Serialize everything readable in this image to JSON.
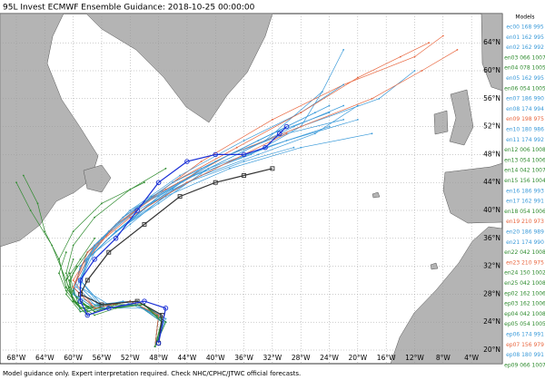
{
  "title": "95L Invest ECMWF Ensemble Guidance: 2018-10-25 00:00:00",
  "footer": "Model guidance only. Expert interpretation required. Check NHC/CPHC/JTWC official forecasts.",
  "legend_title": "Models",
  "lat_ticks": [
    {
      "value": 20,
      "label": "20°N"
    },
    {
      "value": 24,
      "label": "24°N"
    },
    {
      "value": 28,
      "label": "28°N"
    },
    {
      "value": 32,
      "label": "32°N"
    },
    {
      "value": 36,
      "label": "36°N"
    },
    {
      "value": 40,
      "label": "40°N"
    },
    {
      "value": 44,
      "label": "44°N"
    },
    {
      "value": 48,
      "label": "48°N"
    },
    {
      "value": 52,
      "label": "52°N"
    },
    {
      "value": 56,
      "label": "56°N"
    },
    {
      "value": 60,
      "label": "60°N"
    },
    {
      "value": 64,
      "label": "64°N"
    }
  ],
  "lon_ticks": [
    {
      "value": -68,
      "label": "68°W"
    },
    {
      "value": -64,
      "label": "64°W"
    },
    {
      "value": -60,
      "label": "60°W"
    },
    {
      "value": -56,
      "label": "56°W"
    },
    {
      "value": -52,
      "label": "52°W"
    },
    {
      "value": -48,
      "label": "48°W"
    },
    {
      "value": -44,
      "label": "44°W"
    },
    {
      "value": -40,
      "label": "40°W"
    },
    {
      "value": -36,
      "label": "36°W"
    },
    {
      "value": -32,
      "label": "32°W"
    },
    {
      "value": -28,
      "label": "28°W"
    },
    {
      "value": -24,
      "label": "24°W"
    },
    {
      "value": -20,
      "label": "20°W"
    },
    {
      "value": -16,
      "label": "16°W"
    },
    {
      "value": -12,
      "label": "12°W"
    },
    {
      "value": -8,
      "label": "8°W"
    },
    {
      "value": -4,
      "label": "4°W"
    }
  ],
  "tracks": [
    {
      "label": "ec00 168 995",
      "color": "#3a9ad9",
      "lon": [
        -48.5,
        -47.5,
        -50,
        -55,
        -59,
        -60,
        -58,
        -54,
        -48,
        -40,
        -32,
        -24
      ],
      "lat": [
        20.5,
        24,
        26.5,
        26,
        25.5,
        29,
        33,
        37,
        42,
        47,
        51,
        55
      ]
    },
    {
      "label": "en01 162 995",
      "color": "#3a9ad9",
      "lon": [
        -48.5,
        -48,
        -52,
        -57,
        -60,
        -59,
        -55,
        -49,
        -42,
        -34,
        -26
      ],
      "lat": [
        20.5,
        25,
        27,
        26,
        28,
        32,
        36,
        41,
        46,
        50,
        54
      ]
    },
    {
      "label": "en02 162 992",
      "color": "#3a9ad9",
      "lon": [
        -48.5,
        -47,
        -51,
        -56,
        -59,
        -57,
        -52,
        -46,
        -38,
        -30,
        -20
      ],
      "lat": [
        20.5,
        24.5,
        27,
        26.5,
        30,
        34,
        38,
        43,
        47,
        50,
        53
      ]
    },
    {
      "label": "en03 066 1007",
      "color": "#2e8b2e",
      "lon": [
        -48.5,
        -47.5,
        -50,
        -55,
        -58,
        -60,
        -61,
        -60
      ],
      "lat": [
        20.5,
        24,
        26.5,
        26,
        25,
        27,
        30,
        33
      ]
    },
    {
      "label": "en04 078 1005",
      "color": "#2e8b2e",
      "lon": [
        -48.5,
        -48,
        -51,
        -56,
        -59,
        -61,
        -60,
        -58,
        -55
      ],
      "lat": [
        20.5,
        25,
        27,
        26.5,
        25.5,
        28,
        31,
        34,
        37
      ]
    },
    {
      "label": "en05 162 995",
      "color": "#3a9ad9",
      "lon": [
        -48.5,
        -47,
        -50,
        -56,
        -60,
        -59,
        -54,
        -47,
        -38,
        -28,
        -18
      ],
      "lat": [
        20.5,
        24,
        26,
        26,
        28,
        32,
        37,
        42,
        46,
        49,
        51
      ]
    },
    {
      "label": "en06 054 1005",
      "color": "#2e8b2e",
      "lon": [
        -48.5,
        -47.5,
        -52,
        -57,
        -60,
        -61,
        -59,
        -57
      ],
      "lat": [
        20.5,
        24.5,
        27,
        26,
        27,
        30,
        33,
        36
      ]
    },
    {
      "label": "en07 186 990",
      "color": "#3a9ad9",
      "lon": [
        -48.5,
        -48,
        -52,
        -57,
        -60,
        -58,
        -53,
        -46,
        -38,
        -28,
        -17,
        -12
      ],
      "lat": [
        20.5,
        25,
        27,
        26,
        29,
        34,
        39,
        44,
        48,
        52,
        56,
        60
      ]
    },
    {
      "label": "en08 174 994",
      "color": "#3a9ad9",
      "lon": [
        -48.5,
        -47,
        -51,
        -56,
        -59,
        -58,
        -54,
        -48,
        -41,
        -33,
        -25,
        -22
      ],
      "lat": [
        20.5,
        24,
        26.5,
        26,
        29,
        33,
        37,
        41,
        46,
        50,
        57,
        63
      ]
    },
    {
      "label": "en09 198 975",
      "color": "#e8643c",
      "lon": [
        -48.5,
        -48,
        -52,
        -57,
        -60,
        -57,
        -50,
        -42,
        -32,
        -22,
        -12,
        -8
      ],
      "lat": [
        20.5,
        25,
        27,
        26,
        30,
        35,
        41,
        47,
        53,
        58,
        62,
        65
      ]
    },
    {
      "label": "en10 180 986",
      "color": "#3a9ad9",
      "lon": [
        -48.5,
        -47.5,
        -51,
        -56,
        -59,
        -57,
        -52,
        -45,
        -36,
        -28,
        -22
      ],
      "lat": [
        20.5,
        24,
        26.5,
        26.5,
        30,
        35,
        40,
        45,
        50,
        54,
        58
      ]
    },
    {
      "label": "en11 174 992",
      "color": "#3a9ad9",
      "lon": [
        -48.5,
        -48,
        -53,
        -58,
        -60,
        -59,
        -55,
        -49,
        -41,
        -33,
        -24
      ],
      "lat": [
        20.5,
        25,
        27,
        26,
        28,
        32,
        37,
        42,
        46,
        49,
        52
      ]
    },
    {
      "label": "en12 006 1008",
      "color": "#2e8b2e",
      "lon": [
        -48.5,
        -48.2
      ],
      "lat": [
        20.5,
        21.2
      ]
    },
    {
      "label": "en13 054 1006",
      "color": "#2e8b2e",
      "lon": [
        -48.5,
        -47.5,
        -50,
        -55,
        -58,
        -60,
        -60.5
      ],
      "lat": [
        20.5,
        24,
        26.5,
        26.5,
        25.5,
        27,
        29
      ]
    },
    {
      "label": "en14 042 1007",
      "color": "#2e8b2e",
      "lon": [
        -48.5,
        -47.5,
        -50,
        -54,
        -57,
        -58.5
      ],
      "lat": [
        20.5,
        24,
        26.5,
        26.5,
        25.5,
        26.5
      ]
    },
    {
      "label": "en15 156 1004",
      "color": "#2e8b2e",
      "lon": [
        -48.5,
        -48,
        -52,
        -57,
        -60,
        -61,
        -60,
        -57,
        -52,
        -47
      ],
      "lat": [
        20.5,
        25,
        27,
        26,
        28,
        31,
        35,
        39,
        43,
        46
      ]
    },
    {
      "label": "en16 186 993",
      "color": "#3a9ad9",
      "lon": [
        -48.5,
        -47,
        -50,
        -55,
        -59,
        -58,
        -55,
        -50,
        -43,
        -35,
        -28,
        -25
      ],
      "lat": [
        20.5,
        24,
        26.5,
        26.5,
        29,
        33,
        37,
        41,
        45,
        48,
        52,
        57
      ]
    },
    {
      "label": "en17 162 991",
      "color": "#3a9ad9",
      "lon": [
        -48.5,
        -48,
        -52,
        -57,
        -60,
        -59,
        -56,
        -51,
        -44,
        -36,
        -29
      ],
      "lat": [
        20.5,
        25,
        27,
        26,
        28,
        32,
        36,
        40,
        44,
        47,
        49
      ]
    },
    {
      "label": "en18 054 1006",
      "color": "#2e8b2e",
      "lon": [
        -48.5,
        -47.5,
        -51,
        -56,
        -59,
        -61,
        -62,
        -61
      ],
      "lat": [
        20.5,
        24,
        26.5,
        26,
        26,
        28.5,
        31,
        34
      ]
    },
    {
      "label": "en19 210 973",
      "color": "#e8643c",
      "lon": [
        -48.5,
        -48,
        -52,
        -57,
        -60,
        -58,
        -54,
        -47,
        -38,
        -28,
        -18,
        -11,
        -6
      ],
      "lat": [
        20.5,
        25,
        27,
        26,
        29,
        33,
        38,
        43,
        48,
        52,
        56,
        60,
        63
      ]
    },
    {
      "label": "en20 186 989",
      "color": "#3a9ad9",
      "lon": [
        -48.5,
        -47.5,
        -51,
        -56,
        -59,
        -58,
        -54,
        -49,
        -42,
        -34,
        -26,
        -20
      ],
      "lat": [
        20.5,
        24,
        26.5,
        26,
        29,
        33,
        37,
        41,
        45,
        48,
        51,
        55
      ]
    },
    {
      "label": "en21 174 990",
      "color": "#3a9ad9",
      "lon": [
        -48.5,
        -48,
        -52,
        -57,
        -59.5,
        -58,
        -54,
        -48,
        -40,
        -32,
        -24
      ],
      "lat": [
        20.5,
        25,
        27,
        26.5,
        29,
        33,
        37,
        42,
        47,
        51,
        54
      ]
    },
    {
      "label": "en22 042 1008",
      "color": "#2e8b2e",
      "lon": [
        -48.5,
        -47.5,
        -50,
        -54,
        -57,
        -59
      ],
      "lat": [
        20.5,
        24,
        26.5,
        26.5,
        25.5,
        27
      ]
    },
    {
      "label": "en23 210 975",
      "color": "#e8643c",
      "lon": [
        -48.5,
        -48,
        -52,
        -57,
        -60,
        -58,
        -53,
        -46,
        -37,
        -28,
        -20,
        -14,
        -10
      ],
      "lat": [
        20.5,
        25,
        27,
        26,
        29,
        34,
        39,
        44,
        49,
        54,
        59,
        62,
        64
      ]
    },
    {
      "label": "en24 150 1002",
      "color": "#2e8b2e",
      "lon": [
        -48.5,
        -47.5,
        -51,
        -56,
        -59,
        -61,
        -62,
        -60,
        -56,
        -50
      ],
      "lat": [
        20.5,
        24,
        26.5,
        26,
        26,
        29,
        33,
        37,
        41,
        44
      ]
    },
    {
      "label": "en25 042 1008",
      "color": "#2e8b2e",
      "lon": [
        -48.5,
        -47.5,
        -50,
        -54,
        -57,
        -59.5
      ],
      "lat": [
        20.5,
        24,
        26.5,
        26.5,
        25.5,
        27.5
      ]
    },
    {
      "label": "ep02 162 1006",
      "color": "#2e8b2e",
      "lon": [
        -48.5,
        -48,
        -52,
        -57,
        -60,
        -61,
        -63,
        -66,
        -68
      ],
      "lat": [
        20.5,
        25,
        27,
        26,
        27,
        30,
        35,
        40,
        44
      ]
    },
    {
      "label": "ep03 162 1006",
      "color": "#2e8b2e",
      "lon": [
        -48.5,
        -47,
        -50,
        -55,
        -59,
        -61,
        -62,
        -64,
        -65,
        -67
      ],
      "lat": [
        20.5,
        24,
        26.5,
        26,
        26,
        29,
        33,
        37,
        41,
        45
      ]
    },
    {
      "label": "ep04 042 1008",
      "color": "#2e8b2e",
      "lon": [
        -48.5,
        -47.5,
        -50,
        -54,
        -57,
        -58.5
      ],
      "lat": [
        20.5,
        24,
        26.5,
        26,
        25,
        26
      ]
    },
    {
      "label": "ep05 054 1005",
      "color": "#2e8b2e",
      "lon": [
        -48.5,
        -47.5,
        -51,
        -56,
        -59,
        -60,
        -60.5
      ],
      "lat": [
        20.5,
        24,
        26.5,
        26.5,
        26,
        28.5,
        31
      ]
    },
    {
      "label": "ep06 174 991",
      "color": "#3a9ad9",
      "lon": [
        -48.5,
        -48,
        -52,
        -57,
        -60,
        -58,
        -53,
        -46,
        -38,
        -30,
        -22
      ],
      "lat": [
        20.5,
        25,
        27,
        26,
        29,
        34,
        39,
        44,
        48,
        51,
        53
      ]
    },
    {
      "label": "ep07 156 979",
      "color": "#e8643c",
      "lon": [
        -48.5,
        -48,
        -52,
        -57,
        -60,
        -58,
        -52,
        -44,
        -36,
        -30
      ],
      "lat": [
        20.5,
        25,
        27,
        26,
        29,
        34,
        39,
        44,
        48,
        51
      ]
    },
    {
      "label": "ep08 180 991",
      "color": "#3a9ad9",
      "lon": [
        -48.5,
        -47.5,
        -51,
        -56,
        -59,
        -57,
        -52,
        -45,
        -37,
        -29,
        -22
      ],
      "lat": [
        20.5,
        24,
        26.5,
        26,
        30,
        35,
        40,
        44,
        48,
        52,
        55
      ]
    },
    {
      "label": "ep09 066 1007",
      "color": "#2e8b2e",
      "lon": [
        -48.5,
        -47.5,
        -50,
        -55,
        -58,
        -60,
        -60.5,
        -59.5
      ],
      "lat": [
        20.5,
        24,
        26.5,
        26,
        25,
        27,
        30,
        32
      ]
    }
  ],
  "mean_track": {
    "color": "#1a2fd6",
    "lon": [
      -48,
      -47,
      -50,
      -55,
      -58,
      -59,
      -59,
      -57,
      -54,
      -51,
      -48,
      -44,
      -40,
      -36,
      -33,
      -31,
      -30
    ],
    "lat": [
      21,
      26,
      27,
      26,
      25,
      27,
      30,
      33,
      36,
      40,
      44,
      47,
      48,
      48,
      49,
      51,
      52
    ]
  },
  "control_track": {
    "color": "#333333",
    "lon": [
      -48,
      -47.5,
      -51,
      -56,
      -59,
      -58,
      -55,
      -50,
      -45,
      -40,
      -36,
      -32
    ],
    "lat": [
      21,
      25,
      27,
      26.5,
      28,
      30,
      34,
      38,
      42,
      44,
      45,
      46
    ]
  }
}
